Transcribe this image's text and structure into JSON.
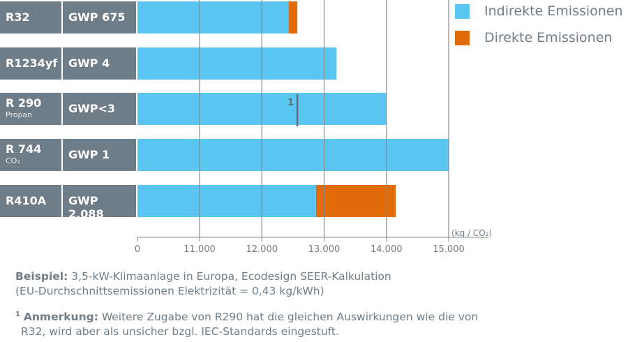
{
  "chart_data": {
    "type": "bar",
    "orientation": "horizontal",
    "stacked": true,
    "categories": [
      {
        "refrigerant": "R32",
        "sub": "",
        "gwp": "GWP 675"
      },
      {
        "refrigerant": "R1234yf",
        "sub": "",
        "gwp": "GWP 4"
      },
      {
        "refrigerant": "R 290",
        "sub": "Propan",
        "gwp": "GWP<3"
      },
      {
        "refrigerant": "R 744",
        "sub": "CO₂",
        "gwp": "GWP 1"
      },
      {
        "refrigerant": "R410A",
        "sub": "",
        "gwp": "GWP 2.088"
      }
    ],
    "series": [
      {
        "name": "Indirekte Emissionen",
        "color": "#5bc5f2",
        "values": [
          12430,
          13200,
          14000,
          15000,
          12870
        ]
      },
      {
        "name": "Direkte Emissionen",
        "color": "#e36c0a",
        "values": [
          140,
          0,
          0,
          0,
          1280
        ]
      }
    ],
    "xticks": [
      0,
      11000,
      12000,
      13000,
      14000,
      15000
    ],
    "xtick_labels": [
      "0",
      "11.000",
      "12.000",
      "13.000",
      "14.000",
      "15.000"
    ],
    "xlim": [
      10000,
      15000
    ],
    "axis_break": true,
    "unit_label": "(kg / CO₂)",
    "legend_position": "top-right",
    "grid": "vertical",
    "marker": {
      "row": 2,
      "value": 12570,
      "label": "1"
    }
  },
  "footnotes": {
    "example_bold": "Beispiel:",
    "example_text": " 3,5-kW-Klimaanlage in Europa, Ecodesign SEER-Kalkulation",
    "example_text2": "(EU-Durchschnittsemissionen Elektrizität = 0,43 kg/kWh)",
    "note_sup": "1",
    "note_bold": "Anmerkung:",
    "note_text": " Weitere Zugabe von R290 hat die gleichen Auswirkungen wie die von",
    "note_text2": "R32, wird aber als unsicher bzgl. IEC-Standards eingestuft."
  }
}
